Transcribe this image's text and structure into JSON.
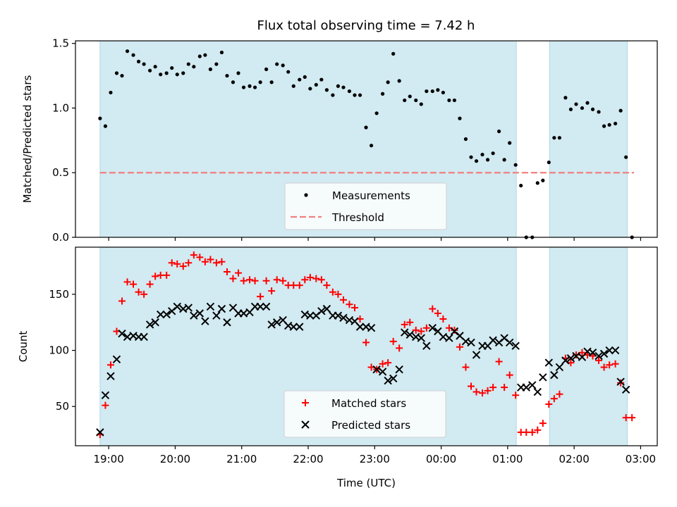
{
  "title": "Flux total observing time = 7.42 h",
  "colors": {
    "night_band": "#add8e6",
    "measurement": "#000000",
    "threshold": "#f08080",
    "matched": "#ff0000",
    "predicted": "#000000"
  },
  "chart_data": [
    {
      "type": "scatter",
      "ylabel": "Matched/Predicted stars",
      "ylim": [
        0,
        1.52
      ],
      "yticks": [
        0.0,
        0.5,
        1.0,
        1.5
      ],
      "ytick_labels": [
        "0.0",
        "0.5",
        "1.0",
        "1.5"
      ],
      "xlim_hours": [
        18.5,
        27.25
      ],
      "shaded_spans_hours": [
        [
          18.87,
          25.13
        ],
        [
          25.63,
          26.8
        ]
      ],
      "threshold": {
        "name": "Threshold",
        "value": 0.5,
        "x_range_hours": [
          18.87,
          26.9
        ]
      },
      "legend": {
        "placement": "lower-center",
        "entries": [
          "Measurements",
          "Threshold"
        ]
      },
      "series": [
        {
          "name": "Measurements",
          "x_hours": [
            18.87,
            18.95,
            19.03,
            19.12,
            19.2,
            19.28,
            19.37,
            19.45,
            19.53,
            19.62,
            19.7,
            19.78,
            19.87,
            19.95,
            20.03,
            20.12,
            20.2,
            20.28,
            20.37,
            20.45,
            20.53,
            20.62,
            20.7,
            20.78,
            20.87,
            20.95,
            21.03,
            21.12,
            21.2,
            21.28,
            21.37,
            21.45,
            21.53,
            21.62,
            21.7,
            21.78,
            21.87,
            21.95,
            22.03,
            22.12,
            22.2,
            22.28,
            22.37,
            22.45,
            22.53,
            22.62,
            22.7,
            22.78,
            22.87,
            22.95,
            23.03,
            23.12,
            23.2,
            23.28,
            23.37,
            23.45,
            23.53,
            23.62,
            23.7,
            23.78,
            23.87,
            23.95,
            24.03,
            24.12,
            24.2,
            24.28,
            24.37,
            24.45,
            24.53,
            24.62,
            24.7,
            24.78,
            24.87,
            24.95,
            25.03,
            25.12,
            25.2,
            25.28,
            25.37,
            25.45,
            25.53,
            25.62,
            25.7,
            25.78,
            25.87,
            25.95,
            26.03,
            26.12,
            26.2,
            26.28,
            26.37,
            26.45,
            26.53,
            26.62,
            26.7,
            26.78,
            26.87
          ],
          "y": [
            0.92,
            0.86,
            1.12,
            1.27,
            1.25,
            1.44,
            1.41,
            1.36,
            1.34,
            1.29,
            1.32,
            1.26,
            1.27,
            1.31,
            1.26,
            1.27,
            1.34,
            1.32,
            1.4,
            1.41,
            1.3,
            1.34,
            1.43,
            1.25,
            1.2,
            1.27,
            1.16,
            1.17,
            1.16,
            1.2,
            1.3,
            1.2,
            1.34,
            1.33,
            1.28,
            1.17,
            1.22,
            1.24,
            1.15,
            1.18,
            1.22,
            1.14,
            1.1,
            1.17,
            1.16,
            1.13,
            1.1,
            1.1,
            0.85,
            0.71,
            0.96,
            1.11,
            1.2,
            1.42,
            1.21,
            1.06,
            1.09,
            1.06,
            1.03,
            1.13,
            1.13,
            1.14,
            1.12,
            1.06,
            1.06,
            0.92,
            0.76,
            0.62,
            0.59,
            0.64,
            0.6,
            0.65,
            0.82,
            0.6,
            0.73,
            0.56,
            0.4,
            0.0,
            0.0,
            0.42,
            0.44,
            0.58,
            0.77,
            0.77,
            1.08,
            0.99,
            1.03,
            1.0,
            1.04,
            0.99,
            0.97,
            0.86,
            0.87,
            0.88,
            0.98,
            0.62,
            0.0
          ]
        }
      ]
    },
    {
      "type": "scatter",
      "title": "",
      "xlabel": "Time (UTC)",
      "ylabel": "Count",
      "ylim": [
        15,
        192
      ],
      "yticks": [
        50,
        100,
        150
      ],
      "ytick_labels": [
        "50",
        "100",
        "150"
      ],
      "xlim_hours": [
        18.5,
        27.25
      ],
      "xticks_hours": [
        19,
        20,
        21,
        22,
        23,
        24,
        25,
        26,
        27
      ],
      "xtick_labels": [
        "19:00",
        "20:00",
        "21:00",
        "22:00",
        "23:00",
        "00:00",
        "01:00",
        "02:00",
        "03:00"
      ],
      "shaded_spans_hours": [
        [
          18.87,
          25.13
        ],
        [
          25.63,
          26.8
        ]
      ],
      "legend": {
        "placement": "lower-center",
        "entries": [
          "Matched stars",
          "Predicted stars"
        ]
      },
      "series": [
        {
          "name": "Matched stars",
          "marker": "plus",
          "x_hours": [
            18.87,
            18.95,
            19.03,
            19.12,
            19.2,
            19.28,
            19.37,
            19.45,
            19.53,
            19.62,
            19.7,
            19.78,
            19.87,
            19.95,
            20.03,
            20.12,
            20.2,
            20.28,
            20.37,
            20.45,
            20.53,
            20.62,
            20.7,
            20.78,
            20.87,
            20.95,
            21.03,
            21.12,
            21.2,
            21.28,
            21.37,
            21.45,
            21.53,
            21.62,
            21.7,
            21.78,
            21.87,
            21.95,
            22.03,
            22.12,
            22.2,
            22.28,
            22.37,
            22.45,
            22.53,
            22.62,
            22.7,
            22.78,
            22.87,
            22.95,
            23.03,
            23.12,
            23.2,
            23.28,
            23.37,
            23.45,
            23.53,
            23.62,
            23.7,
            23.78,
            23.87,
            23.95,
            24.03,
            24.12,
            24.2,
            24.28,
            24.37,
            24.45,
            24.53,
            24.62,
            24.7,
            24.78,
            24.87,
            24.95,
            25.03,
            25.12,
            25.2,
            25.28,
            25.37,
            25.45,
            25.53,
            25.62,
            25.7,
            25.78,
            25.87,
            25.95,
            26.03,
            26.12,
            26.2,
            26.28,
            26.37,
            26.45,
            26.53,
            26.62,
            26.7,
            26.78,
            26.87
          ],
          "y": [
            25,
            51,
            87,
            117,
            144,
            161,
            159,
            152,
            150,
            159,
            166,
            167,
            167,
            178,
            177,
            175,
            178,
            185,
            183,
            179,
            181,
            178,
            179,
            170,
            164,
            169,
            162,
            163,
            162,
            148,
            162,
            153,
            163,
            162,
            158,
            158,
            158,
            163,
            165,
            164,
            163,
            158,
            152,
            150,
            145,
            141,
            138,
            128,
            107,
            85,
            83,
            88,
            89,
            108,
            102,
            123,
            125,
            118,
            117,
            120,
            137,
            133,
            128,
            120,
            118,
            103,
            85,
            68,
            63,
            62,
            64,
            67,
            90,
            67,
            78,
            60,
            27,
            27,
            27,
            29,
            35,
            52,
            57,
            61,
            93,
            89,
            96,
            98,
            96,
            95,
            91,
            85,
            87,
            88,
            71,
            40,
            40
          ]
        },
        {
          "name": "Predicted stars",
          "marker": "x",
          "x_hours": [
            18.87,
            18.95,
            19.03,
            19.12,
            19.2,
            19.28,
            19.37,
            19.45,
            19.53,
            19.62,
            19.7,
            19.78,
            19.87,
            19.95,
            20.03,
            20.12,
            20.2,
            20.28,
            20.37,
            20.45,
            20.53,
            20.62,
            20.7,
            20.78,
            20.87,
            20.95,
            21.03,
            21.12,
            21.2,
            21.28,
            21.37,
            21.45,
            21.53,
            21.62,
            21.7,
            21.78,
            21.87,
            21.95,
            22.03,
            22.12,
            22.2,
            22.28,
            22.37,
            22.45,
            22.53,
            22.62,
            22.7,
            22.78,
            22.87,
            22.95,
            23.03,
            23.12,
            23.2,
            23.28,
            23.37,
            23.45,
            23.53,
            23.62,
            23.7,
            23.78,
            23.87,
            23.95,
            24.03,
            24.12,
            24.2,
            24.28,
            24.37,
            24.45,
            24.53,
            24.62,
            24.7,
            24.78,
            24.87,
            24.95,
            25.03,
            25.12,
            25.2,
            25.28,
            25.37,
            25.45,
            25.53,
            25.62,
            25.7,
            25.78,
            25.87,
            25.95,
            26.03,
            26.12,
            26.2,
            26.28,
            26.37,
            26.45,
            26.53,
            26.62,
            26.7,
            26.78
          ],
          "y": [
            27,
            60,
            77,
            92,
            115,
            112,
            113,
            112,
            112,
            123,
            125,
            132,
            132,
            135,
            139,
            137,
            138,
            131,
            133,
            126,
            139,
            131,
            137,
            125,
            138,
            133,
            133,
            134,
            139,
            139,
            139,
            123,
            125,
            127,
            122,
            121,
            121,
            132,
            131,
            131,
            135,
            137,
            131,
            131,
            129,
            127,
            126,
            121,
            121,
            120,
            83,
            81,
            73,
            75,
            83,
            116,
            114,
            112,
            111,
            104,
            120,
            117,
            112,
            111,
            117,
            113,
            108,
            107,
            96,
            104,
            104,
            109,
            107,
            111,
            107,
            104,
            67,
            67,
            69,
            63,
            76,
            89,
            78,
            85,
            91,
            93,
            95,
            94,
            99,
            98,
            95,
            97,
            100,
            100,
            72,
            65
          ]
        }
      ]
    }
  ]
}
